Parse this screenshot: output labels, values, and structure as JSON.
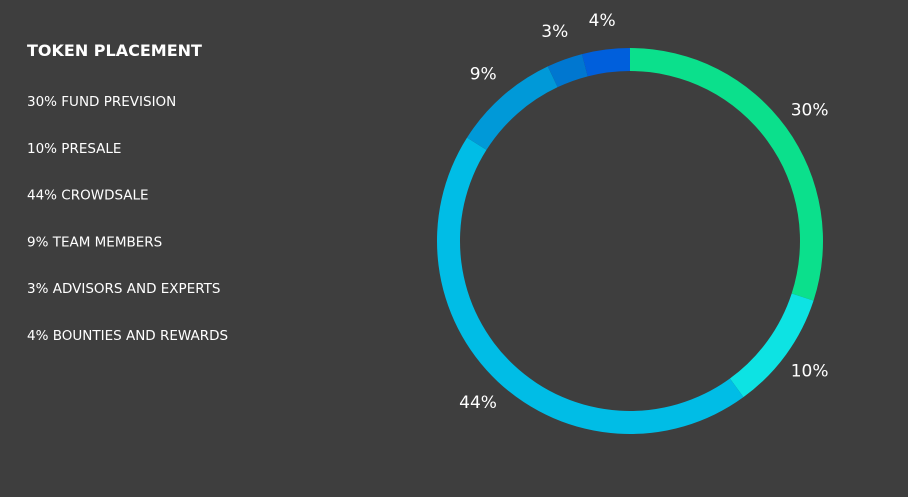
{
  "chart_data": {
    "type": "donut",
    "title": "TOKEN PLACEMENT",
    "categories": [
      "30% FUND PREVISION",
      "10% PRESALE",
      "44% CROWDSALE",
      "9% TEAM MEMBERS",
      "3% ADVISORS AND EXPERTS",
      "4% BOUNTIES AND REWARDS"
    ],
    "values": [
      30,
      10,
      44,
      9,
      3,
      4
    ],
    "value_labels": [
      "30%",
      "10%",
      "44%",
      "9%",
      "3%",
      "4%"
    ],
    "colors": [
      "#0be08c",
      "#0de3e3",
      "#00bde6",
      "#0099d8",
      "#0077d0",
      "#005fdc"
    ]
  }
}
